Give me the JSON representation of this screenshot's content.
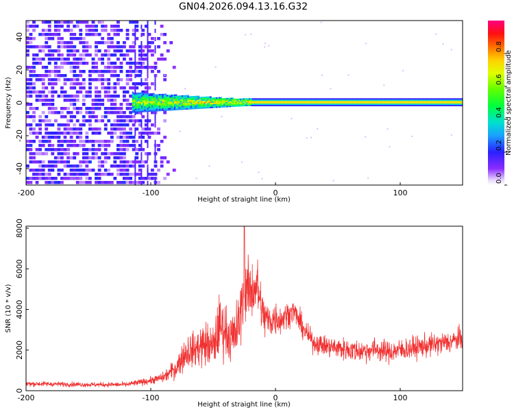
{
  "title": "GN04.2026.094.13.16.G32",
  "chart_data": [
    {
      "type": "heatmap",
      "title": "GN04.2026.094.13.16.G32",
      "xlabel": "Height of straight line (km)",
      "ylabel": "Frequency (Hz)",
      "xlim": [
        -200,
        150
      ],
      "ylim": [
        -50,
        50
      ],
      "xticks": [
        "-200",
        "-100",
        "0",
        "100"
      ],
      "xtick_values": [
        -200,
        -100,
        0,
        100
      ],
      "yticks": [
        "40",
        "20",
        "0",
        "-20",
        "-40"
      ],
      "ytick_values": [
        40,
        20,
        0,
        -20,
        -40
      ],
      "colorbar": {
        "label": "Normalized spectral amplitude",
        "range": [
          0,
          1
        ],
        "ticks": [
          "0.0",
          "0.2",
          "0.4",
          "0.6",
          "0.8"
        ],
        "tick_values": [
          0,
          0.2,
          0.4,
          0.6,
          0.8
        ]
      },
      "features": {
        "noise_region_km": [
          -200,
          -90
        ],
        "noise_amplitude": 0.25,
        "carrier_start_km": -115,
        "carrier_frequency_hz": 0,
        "carrier_amplitude_near_start": 0.55,
        "carrier_amplitude_far": 0.95
      }
    },
    {
      "type": "line",
      "xlabel": "Height of straight line (km)",
      "ylabel": "SNR (10 * v/v)",
      "xlim": [
        -200,
        150
      ],
      "ylim": [
        0,
        8100
      ],
      "xticks": [
        "-200",
        "-100",
        "0",
        "100"
      ],
      "xtick_values": [
        -200,
        -100,
        0,
        100
      ],
      "yticks": [
        "8000",
        "6000",
        "4000",
        "2000",
        "0"
      ],
      "ytick_values": [
        8000,
        6000,
        4000,
        2000,
        0
      ],
      "series_color": "#f03030",
      "series": [
        {
          "name": "SNR",
          "envelope_x": [
            -200,
            -150,
            -120,
            -100,
            -90,
            -80,
            -75,
            -70,
            -65,
            -60,
            -55,
            -50,
            -45,
            -40,
            -35,
            -30,
            -25,
            -20,
            -15,
            -10,
            -5,
            0,
            5,
            10,
            15,
            20,
            25,
            30,
            40,
            50,
            60,
            70,
            80,
            90,
            100,
            110,
            120,
            130,
            140,
            150
          ],
          "envelope_mean": [
            350,
            300,
            300,
            500,
            650,
            1100,
            1600,
            2000,
            2000,
            2200,
            2300,
            2100,
            3200,
            3000,
            2500,
            3100,
            5000,
            4900,
            5200,
            3700,
            3400,
            3600,
            3500,
            3800,
            3900,
            3300,
            2800,
            2400,
            2200,
            2100,
            2000,
            1950,
            2050,
            1900,
            2000,
            2100,
            2200,
            2300,
            2400,
            2600
          ],
          "envelope_spread": [
            120,
            120,
            120,
            180,
            250,
            500,
            700,
            900,
            800,
            1100,
            1100,
            1100,
            1500,
            1300,
            1300,
            1500,
            1600,
            1500,
            1500,
            1100,
            900,
            900,
            700,
            600,
            600,
            600,
            500,
            500,
            500,
            550,
            550,
            550,
            550,
            550,
            550,
            550,
            550,
            550,
            550,
            550
          ],
          "peak": {
            "x": -25,
            "y": 8100
          }
        }
      ]
    }
  ]
}
